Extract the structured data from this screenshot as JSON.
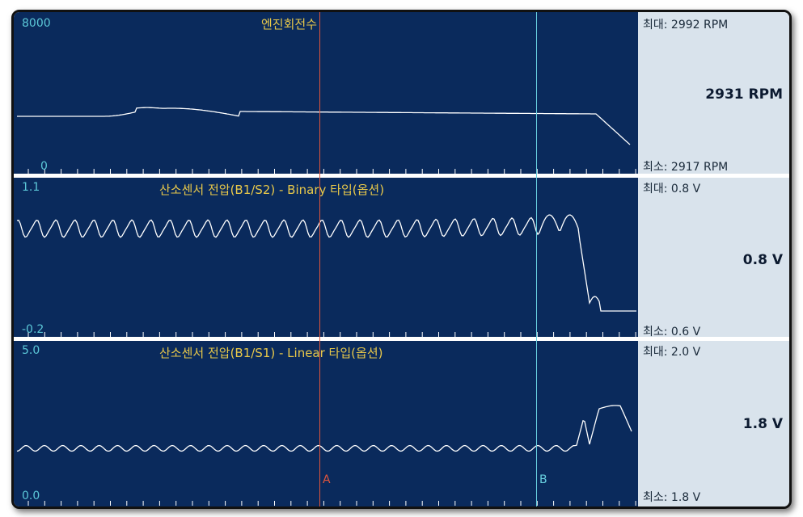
{
  "panels": [
    {
      "title": "엔진회전수",
      "y_max": "8000",
      "y_min": "0",
      "max_text": "최대:  2992 RPM",
      "min_text": "최소:  2917 RPM",
      "current": "2931 RPM"
    },
    {
      "title": "산소센서 전압(B1/S2) - Binary 타입(옵션)",
      "y_max": "1.1",
      "y_min": "-0.2",
      "max_text": "최대:   0.8 V",
      "min_text": "최소:   0.6 V",
      "current": "0.8 V"
    },
    {
      "title": "산소센서 전압(B1/S1) - Linear 타입(옵션)",
      "y_max": "5.0",
      "y_min": "0.0",
      "max_text": "최대:   2.0 V",
      "min_text": "최소:   1.8 V",
      "current": "1.8 V"
    }
  ],
  "cursors": {
    "a_label": "A",
    "b_label": "B"
  },
  "colors": {
    "plot_bg": "#0a2a5c",
    "side_bg": "#d9e3ec",
    "trace": "#ffffff",
    "title": "#e8c84a",
    "axis_label": "#5cc8d8",
    "cursor_a": "#e0553c",
    "cursor_b": "#68d0e0"
  }
}
